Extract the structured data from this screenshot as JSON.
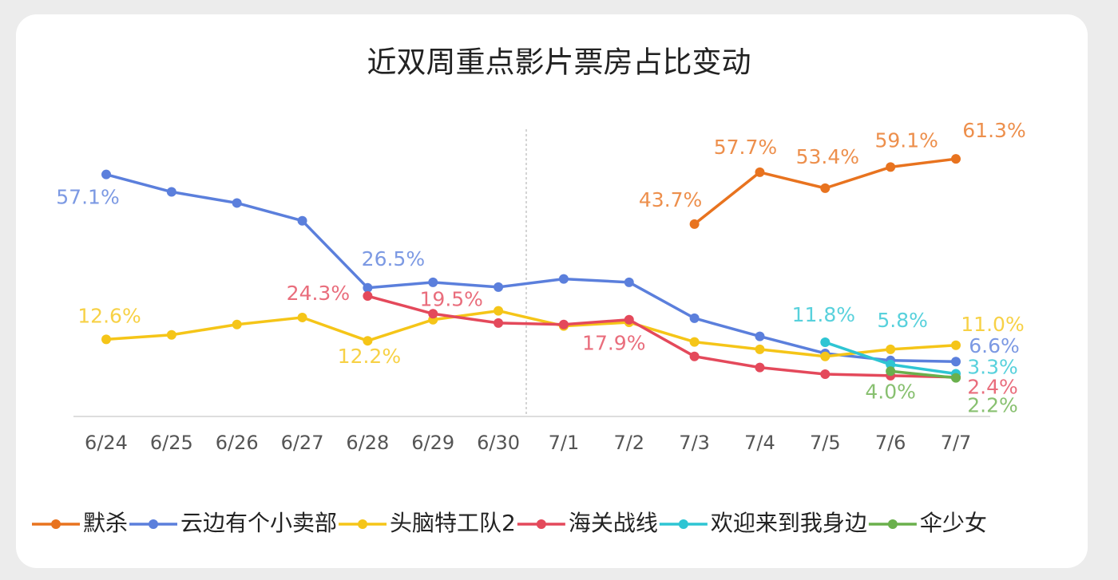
{
  "chart_data": {
    "type": "line",
    "title": "近双周重点影片票房占比变动",
    "categories": [
      "6/24",
      "6/25",
      "6/26",
      "6/27",
      "6/28",
      "6/29",
      "6/30",
      "7/1",
      "7/2",
      "7/3",
      "7/4",
      "7/5",
      "7/6",
      "7/7"
    ],
    "ylim": [
      -8,
      65
    ],
    "series": [
      {
        "name": "默杀",
        "color": "#e8731f",
        "values": [
          null,
          null,
          null,
          null,
          null,
          null,
          null,
          null,
          null,
          43.7,
          57.7,
          53.4,
          59.1,
          61.3
        ],
        "value_labels": [
          null,
          null,
          null,
          null,
          null,
          null,
          null,
          null,
          null,
          "43.7%",
          "57.7%",
          "53.4%",
          "59.1%",
          "61.3%"
        ]
      },
      {
        "name": "云边有个小卖部",
        "color": "#5b7fdc",
        "values": [
          57.1,
          52.4,
          49.4,
          44.6,
          26.5,
          28.0,
          26.7,
          28.9,
          28.0,
          18.3,
          13.4,
          8.8,
          6.9,
          6.6
        ],
        "value_labels": [
          "57.1%",
          null,
          null,
          null,
          "26.5%",
          null,
          null,
          null,
          null,
          null,
          null,
          null,
          null,
          "6.6%"
        ]
      },
      {
        "name": "头脑特工队2",
        "color": "#f5c518",
        "values": [
          12.6,
          13.8,
          16.6,
          18.5,
          12.2,
          17.9,
          20.3,
          16.2,
          17.2,
          11.9,
          9.9,
          8.0,
          9.9,
          11.0
        ],
        "value_labels": [
          "12.6%",
          null,
          null,
          null,
          "12.2%",
          null,
          null,
          null,
          null,
          null,
          null,
          null,
          null,
          "11.0%"
        ]
      },
      {
        "name": "海关战线",
        "color": "#e4495b",
        "values": [
          null,
          null,
          null,
          null,
          24.3,
          19.5,
          17.0,
          16.6,
          17.9,
          8.0,
          5.0,
          3.2,
          2.8,
          2.4
        ],
        "value_labels": [
          null,
          null,
          null,
          null,
          "24.3%",
          "19.5%",
          null,
          null,
          "17.9%",
          null,
          null,
          null,
          null,
          "2.4%"
        ]
      },
      {
        "name": "欢迎来到我身边",
        "color": "#2ec5d3",
        "values": [
          null,
          null,
          null,
          null,
          null,
          null,
          null,
          null,
          null,
          null,
          null,
          11.8,
          5.8,
          3.3
        ],
        "value_labels": [
          null,
          null,
          null,
          null,
          null,
          null,
          null,
          null,
          null,
          null,
          null,
          "11.8%",
          "5.8%",
          "3.3%"
        ]
      },
      {
        "name": "伞少女",
        "color": "#6ab04c",
        "values": [
          null,
          null,
          null,
          null,
          null,
          null,
          null,
          null,
          null,
          null,
          null,
          null,
          4.0,
          2.2
        ],
        "value_labels": [
          null,
          null,
          null,
          null,
          null,
          null,
          null,
          null,
          null,
          null,
          null,
          null,
          "4.0%",
          "2.2%"
        ]
      }
    ]
  }
}
